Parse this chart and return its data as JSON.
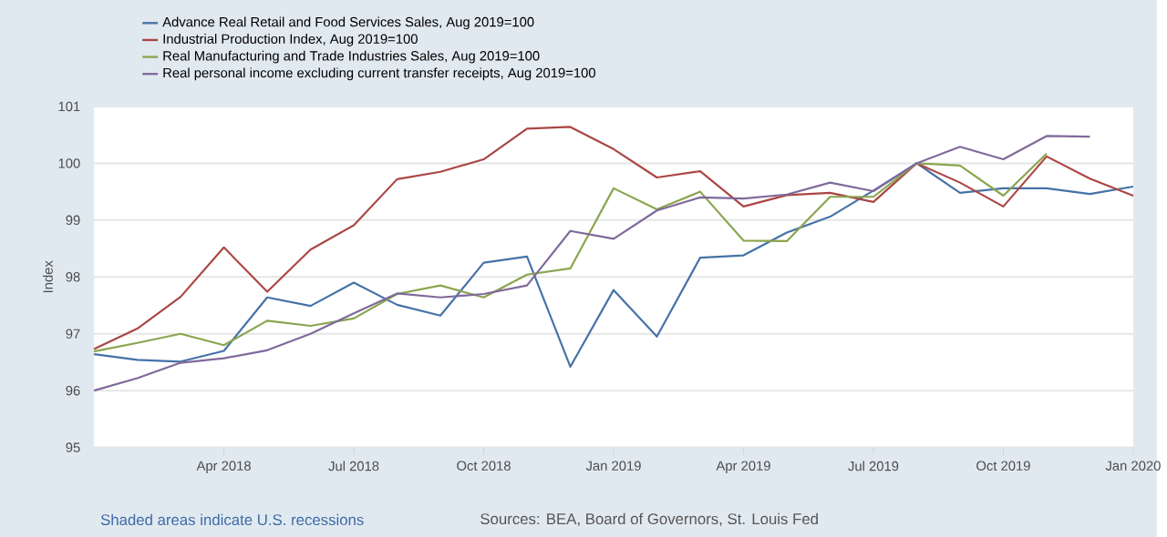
{
  "chart_data": {
    "type": "line",
    "ylabel": "Index",
    "x": [
      "2018-01",
      "2018-02",
      "2018-03",
      "2018-04",
      "2018-05",
      "2018-06",
      "2018-07",
      "2018-08",
      "2018-09",
      "2018-10",
      "2018-11",
      "2018-12",
      "2019-01",
      "2019-02",
      "2019-03",
      "2019-04",
      "2019-05",
      "2019-06",
      "2019-07",
      "2019-08",
      "2019-09",
      "2019-10",
      "2019-11",
      "2019-12",
      "2020-01"
    ],
    "series": [
      {
        "name": "Advance Real Retail and Food Services Sales, Aug 2019=100",
        "color": "#4572a7",
        "values": [
          96.64,
          96.54,
          96.51,
          96.7,
          97.64,
          97.49,
          97.9,
          97.51,
          97.32,
          98.25,
          98.36,
          96.42,
          97.77,
          96.95,
          98.34,
          98.38,
          98.78,
          99.06,
          99.52,
          100.0,
          99.48,
          99.56,
          99.56,
          99.46,
          99.59
        ]
      },
      {
        "name": "Industrial Production Index, Aug 2019=100",
        "color": "#aa4643",
        "values": [
          96.73,
          97.09,
          97.65,
          98.52,
          97.74,
          98.48,
          98.91,
          99.72,
          99.85,
          100.07,
          100.61,
          100.64,
          100.25,
          99.75,
          99.86,
          99.24,
          99.44,
          99.48,
          99.32,
          100.0,
          99.66,
          99.24,
          100.12,
          99.73,
          99.43
        ]
      },
      {
        "name": "Real Manufacturing and Trade Industries Sales, Aug 2019=100",
        "color": "#89a54e",
        "values": [
          96.69,
          96.84,
          97.0,
          96.8,
          97.23,
          97.14,
          97.27,
          97.7,
          97.85,
          97.64,
          98.04,
          98.15,
          99.56,
          99.19,
          99.5,
          98.64,
          98.63,
          99.41,
          99.41,
          100.0,
          99.96,
          99.43,
          100.17,
          null,
          null
        ]
      },
      {
        "name": "Real personal income excluding current transfer receipts, Aug 2019=100",
        "color": "#80699b",
        "values": [
          96.0,
          96.22,
          96.49,
          96.57,
          96.71,
          97.0,
          97.36,
          97.71,
          97.64,
          97.7,
          97.85,
          98.81,
          98.67,
          99.17,
          99.4,
          99.38,
          99.45,
          99.66,
          99.51,
          100.0,
          100.29,
          100.07,
          100.48,
          100.47,
          null
        ]
      }
    ],
    "xlim": [
      "2018-01",
      "2020-01"
    ],
    "xticks": [
      {
        "value": "2018-04",
        "label": "Apr 2018"
      },
      {
        "value": "2018-07",
        "label": "Jul 2018"
      },
      {
        "value": "2018-10",
        "label": "Oct 2018"
      },
      {
        "value": "2019-01",
        "label": "Jan 2019"
      },
      {
        "value": "2019-04",
        "label": "Apr 2019"
      },
      {
        "value": "2019-07",
        "label": "Jul 2019"
      },
      {
        "value": "2019-10",
        "label": "Oct 2019"
      },
      {
        "value": "2020-01",
        "label": "Jan 2020"
      }
    ],
    "ylim": [
      95,
      101
    ],
    "yticks": [
      95,
      96,
      97,
      98,
      99,
      100,
      101
    ],
    "grid": "y",
    "legend": "top",
    "annotations": [
      "Shaded areas indicate U.S. recessions",
      "Sources: BEA, Board of Governors, St. Louis Fed"
    ]
  }
}
